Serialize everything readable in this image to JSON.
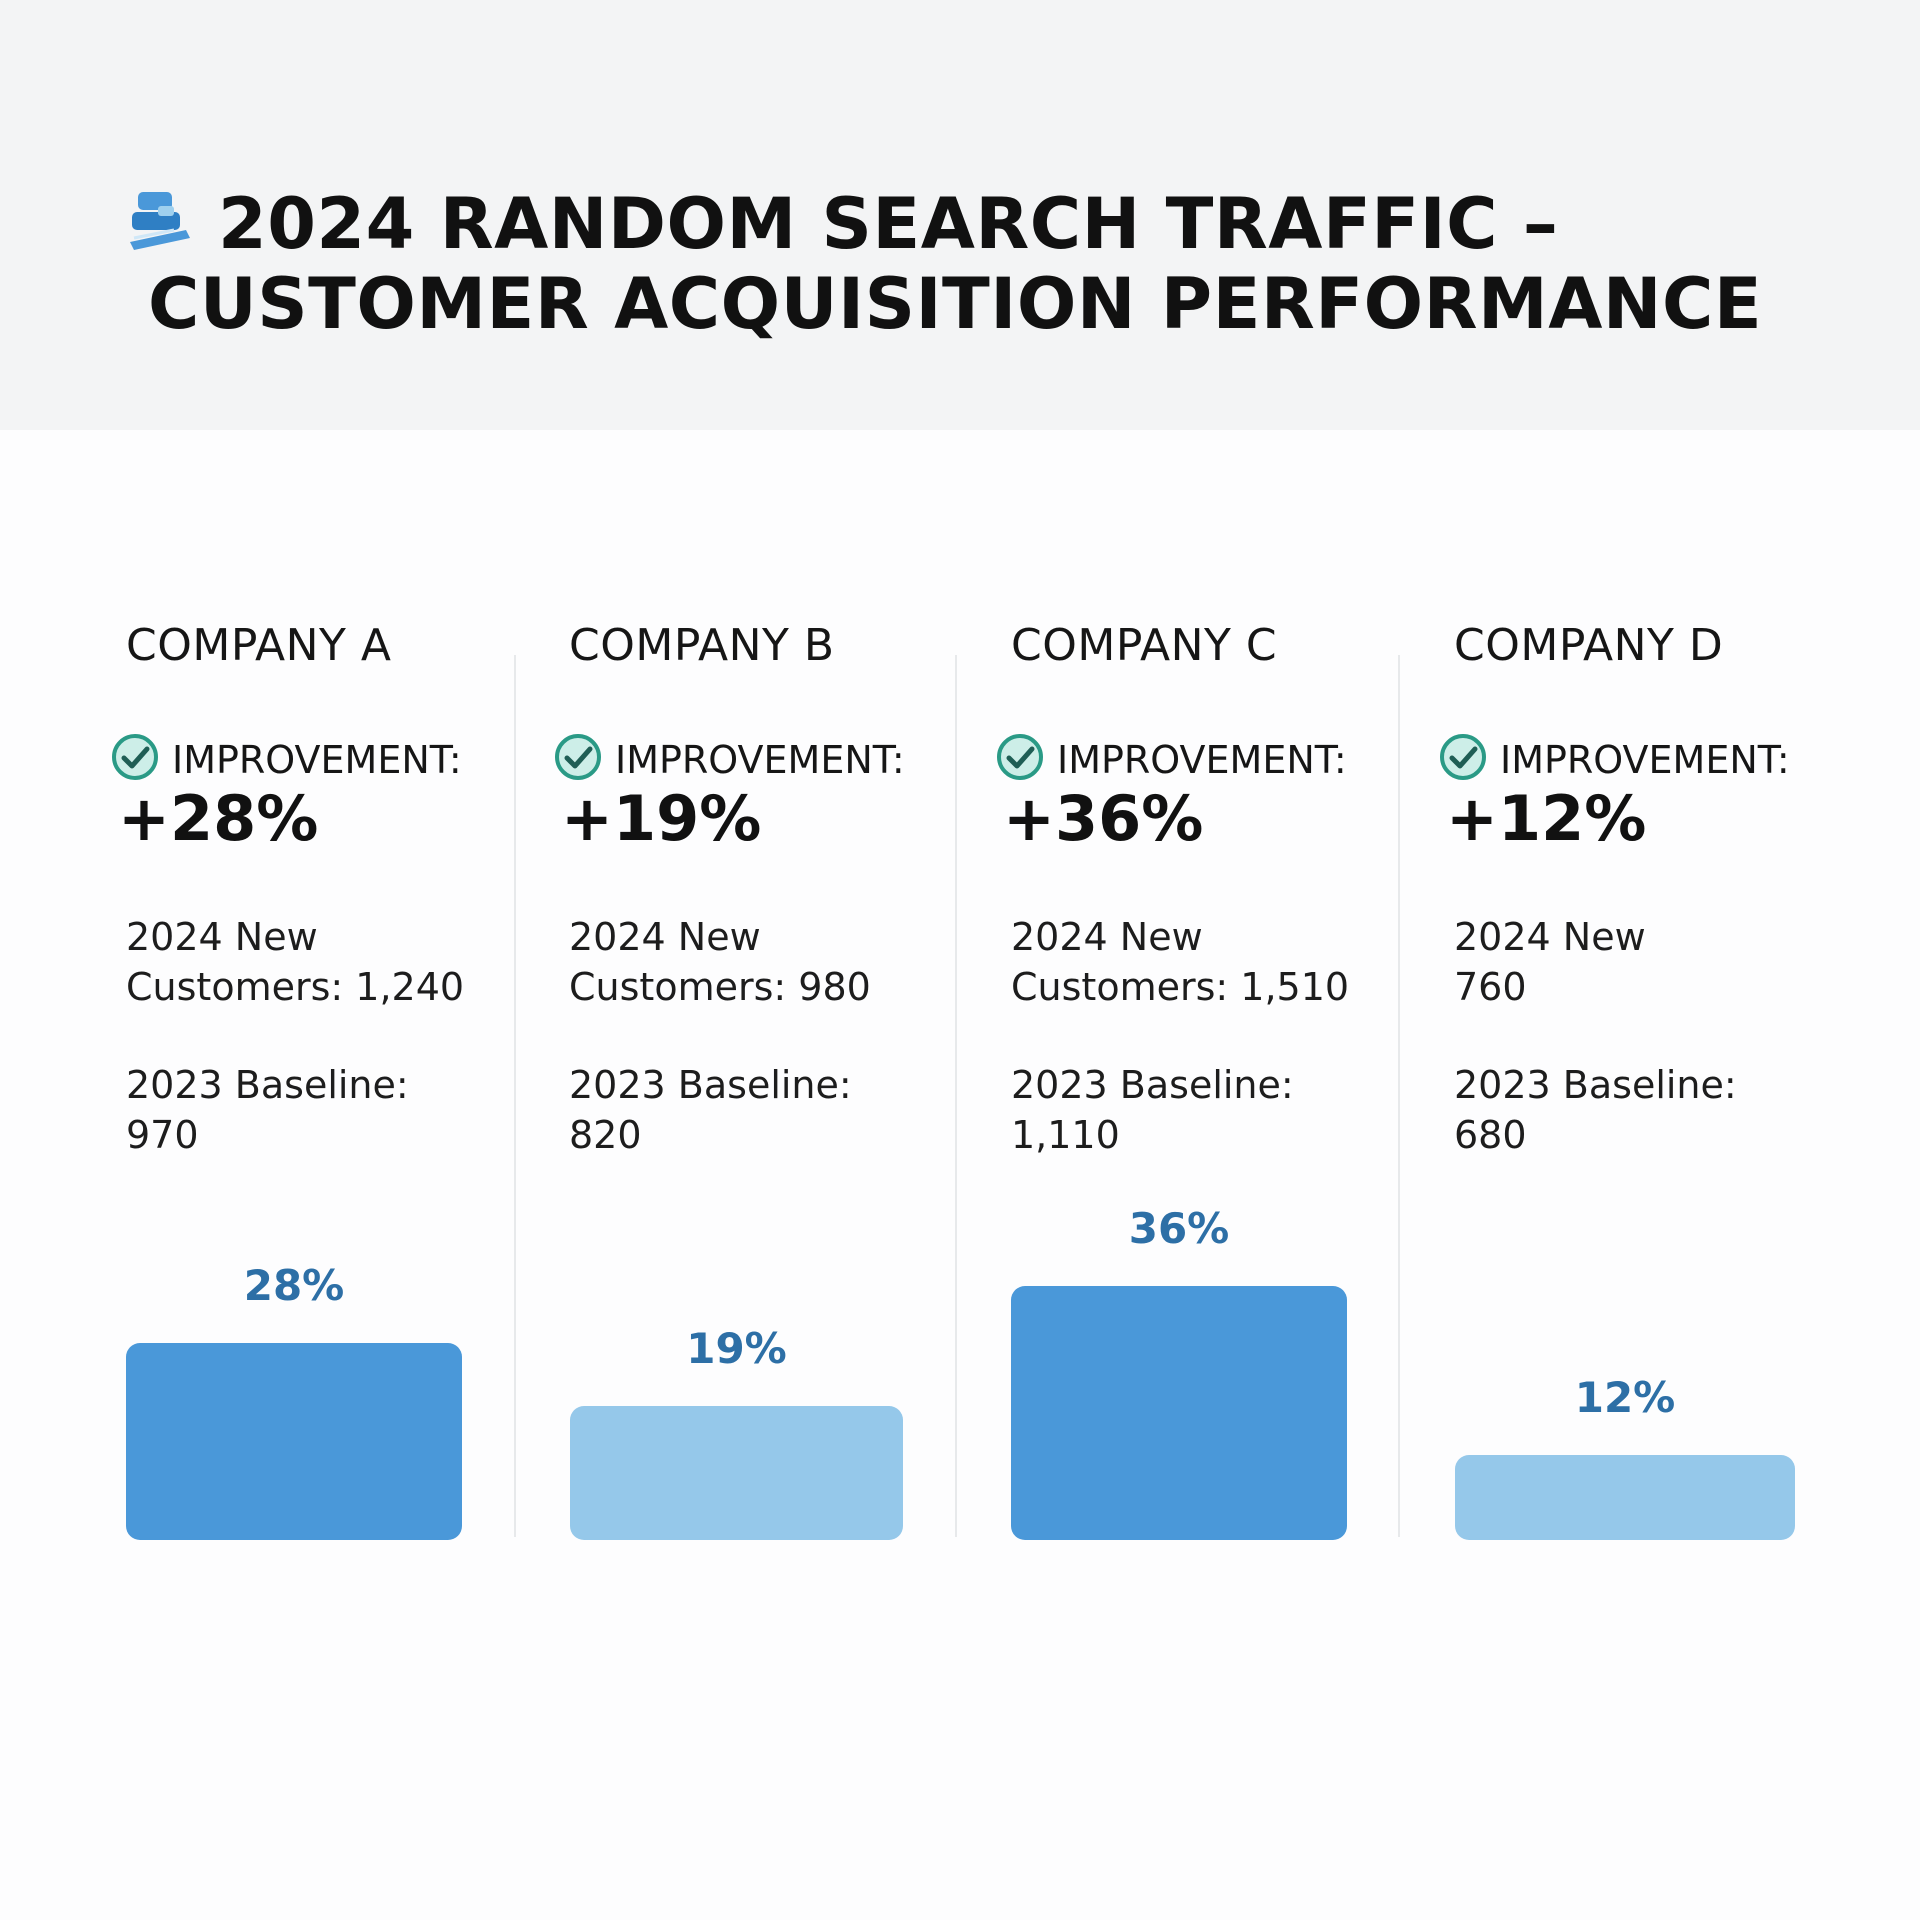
{
  "header": {
    "title_line1": "2024 RANDOM SEARCH TRAFFIC –",
    "title_line2": "CUSTOMER ACQUISITION PERFORMANCE",
    "icon": "search-traffic-icon"
  },
  "colors": {
    "bar_dark": "#4a98d9",
    "bar_light": "#95c8ea",
    "label": "#2d6fa6",
    "check": "#2a9a86"
  },
  "chart_data": {
    "type": "bar",
    "title": "2024 RANDOM SEARCH TRAFFIC – CUSTOMER ACQUISITION PERFORMANCE",
    "categories": [
      "COMPANY A",
      "COMPANY B",
      "COMPANY C",
      "COMPANY D"
    ],
    "values": [
      28,
      19,
      36,
      12
    ],
    "value_labels": [
      "28%",
      "19%",
      "36%",
      "12%"
    ],
    "bar_colors": [
      "#4a98d9",
      "#95c8ea",
      "#4a98d9",
      "#95c8ea"
    ],
    "ylim": [
      0,
      40
    ],
    "grid": false
  },
  "companies": [
    {
      "name": "COMPANY A",
      "improvement_label": "IMPROVEMENT:",
      "improvement_value": "+28%",
      "new_customers": "2024 New\nCustomers: 1,240",
      "baseline": "2023 Baseline:\n970",
      "bar_label": "28%"
    },
    {
      "name": "COMPANY B",
      "improvement_label": "IMPROVEMENT:",
      "improvement_value": "+19%",
      "new_customers": "2024 New\nCustomers: 980",
      "baseline": "2023 Baseline:\n820",
      "bar_label": "19%"
    },
    {
      "name": "COMPANY C",
      "improvement_label": "IMPROVEMENT:",
      "improvement_value": "+36%",
      "new_customers": "2024 New\nCustomers: 1,510",
      "baseline": "2023 Baseline:\n1,110",
      "bar_label": "36%"
    },
    {
      "name": "COMPANY D",
      "improvement_label": "IMPROVEMENT:",
      "improvement_value": "+12%",
      "new_customers": "2024 New\n760",
      "baseline": "2023 Baseline:\n680",
      "bar_label": "12%"
    }
  ]
}
